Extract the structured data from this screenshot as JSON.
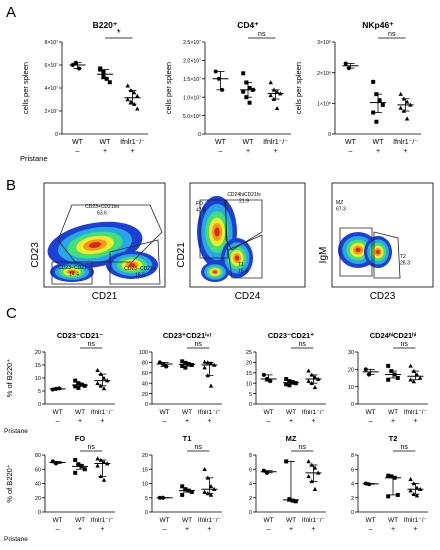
{
  "panels": {
    "a": "A",
    "b": "B",
    "c": "C"
  },
  "x_groups": [
    "WT",
    "WT",
    "Ifnlr1⁻/⁻"
  ],
  "x_signs": [
    "–",
    "+",
    "+"
  ],
  "pristane_label": "Pristane",
  "sig": {
    "star": "*",
    "ns": "ns"
  },
  "row_a": {
    "ylabel": "cells per spleen",
    "charts": [
      {
        "title": "B220⁺",
        "sig": "*",
        "ticks": [
          "0",
          "2×10⁷",
          "4×10⁷",
          "6×10⁷",
          "8×10⁷"
        ],
        "max": 80000000
      },
      {
        "title": "CD4⁺",
        "sig": "ns",
        "ticks": [
          "0",
          "5.0×10⁶",
          "1.0×10⁷",
          "1.5×10⁷",
          "2.0×10⁷",
          "2.5×10⁷"
        ],
        "max": 25000000
      },
      {
        "title": "NKp46⁺",
        "sig": "ns",
        "ticks": [
          "0",
          "1×10⁶",
          "2×10⁶",
          "3×10⁶"
        ],
        "max": 3000000
      }
    ]
  },
  "flow": [
    {
      "xlabel": "CD21",
      "ylabel": "CD23",
      "gates": [
        "CD23+CD21int\n63.6",
        "CD23−CD21−\n14.4",
        "CD23−CD21+\n16.6"
      ]
    },
    {
      "xlabel": "CD24",
      "ylabel": "CD21",
      "gates": [
        "FO\n47.5",
        "CD24hiCD21hi\n21.9",
        "T1\n16.4"
      ]
    },
    {
      "xlabel": "CD23",
      "ylabel": "IgM",
      "gates": [
        "MZ\n67.3",
        "T2\n28.3"
      ]
    }
  ],
  "row_c_ylabel": "% of B220⁺",
  "row_c1": [
    {
      "title": "CD23⁻CD21⁻",
      "sig": "ns",
      "ticks": [
        "0",
        "5",
        "10",
        "15",
        "20"
      ],
      "max": 20
    },
    {
      "title": "CD23⁺CD21ⁱⁿᵗ",
      "sig": "ns",
      "ticks": [
        "0",
        "20",
        "40",
        "60",
        "80",
        "100"
      ],
      "max": 100
    },
    {
      "title": "CD23⁻CD21⁺",
      "sig": "ns",
      "ticks": [
        "0",
        "5",
        "10",
        "15",
        "20",
        "25"
      ],
      "max": 25
    },
    {
      "title": "CD24ʰⁱCD21ʰⁱ",
      "sig": "ns",
      "ticks": [
        "0",
        "10",
        "20",
        "30"
      ],
      "max": 30
    }
  ],
  "row_c2": [
    {
      "title": "FO",
      "sig": "ns",
      "ticks": [
        "0",
        "20",
        "40",
        "60",
        "80"
      ],
      "max": 80
    },
    {
      "title": "T1",
      "sig": "ns",
      "ticks": [
        "0",
        "5",
        "10",
        "15",
        "20"
      ],
      "max": 20
    },
    {
      "title": "MZ",
      "sig": "ns",
      "ticks": [
        "0",
        "2",
        "4",
        "6",
        "8"
      ],
      "max": 8
    },
    {
      "title": "T2",
      "sig": "ns",
      "ticks": [
        "0",
        "2",
        "4",
        "6",
        "8"
      ],
      "max": 8
    }
  ],
  "chart_data": [
    {
      "type": "scatter",
      "title": "B220⁺",
      "ylabel": "cells per spleen",
      "categories": [
        "WT –",
        "WT +",
        "Ifnlr1⁻/⁻ +"
      ],
      "ylim": [
        0,
        80000000
      ],
      "series": [
        {
          "values": [
            [
              60000000,
              62000000,
              57000000
            ],
            [
              56000000,
              50000000,
              48000000,
              45000000,
              57000000,
              54000000
            ],
            [
              42000000,
              38000000,
              36000000,
              33000000,
              30000000,
              28000000,
              26000000,
              22000000
            ]
          ]
        }
      ]
    },
    {
      "type": "scatter",
      "title": "CD4⁺",
      "ylabel": "cells per spleen",
      "categories": [
        "WT –",
        "WT +",
        "Ifnlr1⁻/⁻ +"
      ],
      "ylim": [
        0,
        25000000
      ],
      "series": [
        {
          "values": [
            [
              17000000,
              15000000,
              12000000
            ],
            [
              16500000,
              14000000,
              12500000,
              12000000,
              11500000,
              10000000,
              8500000
            ],
            [
              14000000,
              12000000,
              11500000,
              11000000,
              10500000,
              9500000,
              7000000
            ]
          ]
        }
      ]
    },
    {
      "type": "scatter",
      "title": "NKp46⁺",
      "ylabel": "cells per spleen",
      "categories": [
        "WT –",
        "WT +",
        "Ifnlr1⁻/⁻ +"
      ],
      "ylim": [
        0,
        3000000
      ],
      "series": [
        {
          "values": [
            [
              2300000,
              2150000
            ],
            [
              1700000,
              1300000,
              1100000,
              950000,
              700000,
              400000
            ],
            [
              1300000,
              1150000,
              1050000,
              950000,
              850000,
              750000,
              500000
            ]
          ]
        }
      ]
    },
    {
      "type": "scatter",
      "title": "CD23⁻CD21⁻",
      "ylabel": "% of B220⁺",
      "categories": [
        "WT –",
        "WT +",
        "Ifnlr1⁻/⁻ +"
      ],
      "ylim": [
        0,
        20
      ],
      "series": [
        {
          "values": [
            [
              5.6,
              5.8,
              6.0
            ],
            [
              9.0,
              8.0,
              7.5,
              7.0,
              6.8,
              6.2
            ],
            [
              13.0,
              11.5,
              10.0,
              9.0,
              8.0,
              7.0,
              6.0
            ]
          ]
        }
      ]
    },
    {
      "type": "scatter",
      "title": "CD23⁺CD21ⁱⁿᵗ",
      "ylabel": "% of B220⁺",
      "categories": [
        "WT –",
        "WT +",
        "Ifnlr1⁻/⁻ +"
      ],
      "ylim": [
        0,
        100
      ],
      "series": [
        {
          "values": [
            [
              80,
              77,
              72
            ],
            [
              82,
              79,
              77,
              75,
              73,
              70
            ],
            [
              81,
              80,
              78,
              75,
              70,
              55,
              35
            ]
          ]
        }
      ]
    },
    {
      "type": "scatter",
      "title": "CD23⁻CD21⁺",
      "ylabel": "% of B220⁺",
      "categories": [
        "WT –",
        "WT +",
        "Ifnlr1⁻/⁻ +"
      ],
      "ylim": [
        0,
        25
      ],
      "series": [
        {
          "values": [
            [
              14,
              12,
              11
            ],
            [
              12,
              11,
              10.5,
              10,
              9.5,
              9
            ],
            [
              16,
              14,
              13,
              12,
              11,
              10,
              8
            ]
          ]
        }
      ]
    },
    {
      "type": "scatter",
      "title": "CD24ʰⁱCD21ʰⁱ",
      "ylabel": "% of B220⁺",
      "categories": [
        "WT –",
        "WT +",
        "Ifnlr1⁻/⁻ +"
      ],
      "ylim": [
        0,
        30
      ],
      "series": [
        {
          "values": [
            [
              20,
              17
            ],
            [
              22,
              19,
              17,
              15,
              14
            ],
            [
              22,
              19,
              17,
              15,
              14,
              13
            ]
          ]
        }
      ]
    },
    {
      "type": "scatter",
      "title": "FO",
      "ylabel": "% of B220⁺",
      "categories": [
        "WT –",
        "WT +",
        "Ifnlr1⁻/⁻ +"
      ],
      "ylim": [
        0,
        80
      ],
      "series": [
        {
          "values": [
            [
              71,
              68
            ],
            [
              73,
              67,
              64,
              60,
              55
            ],
            [
              75,
              73,
              70,
              68,
              65,
              50,
              45
            ]
          ]
        }
      ]
    },
    {
      "type": "scatter",
      "title": "T1",
      "ylabel": "% of B220⁺",
      "categories": [
        "WT –",
        "WT +",
        "Ifnlr1⁻/⁻ +"
      ],
      "ylim": [
        0,
        20
      ],
      "series": [
        {
          "values": [
            [
              5,
              5
            ],
            [
              9,
              8,
              7.5,
              7,
              6
            ],
            [
              15,
              12,
              9,
              8,
              7,
              6.5,
              6
            ]
          ]
        }
      ]
    },
    {
      "type": "scatter",
      "title": "MZ",
      "ylabel": "% of B220⁺",
      "categories": [
        "WT –",
        "WT +",
        "Ifnlr1⁻/⁻ +"
      ],
      "ylim": [
        0,
        8
      ],
      "series": [
        {
          "values": [
            [
              5.8,
              5.5
            ],
            [
              7.1,
              1.8,
              1.6,
              1.5
            ],
            [
              7.1,
              6.6,
              6.2,
              5.5,
              5.0,
              4.3,
              3.2
            ]
          ]
        }
      ]
    },
    {
      "type": "scatter",
      "title": "T2",
      "ylabel": "% of B220⁺",
      "categories": [
        "WT –",
        "WT +",
        "Ifnlr1⁻/⁻ +"
      ],
      "ylim": [
        0,
        8
      ],
      "series": [
        {
          "values": [
            [
              4.0,
              3.9
            ],
            [
              5.1,
              5.0,
              4.8,
              2.4,
              2.2
            ],
            [
              4.6,
              4.0,
              3.4,
              3.2,
              3.0,
              2.5,
              2.3
            ]
          ]
        }
      ]
    }
  ]
}
